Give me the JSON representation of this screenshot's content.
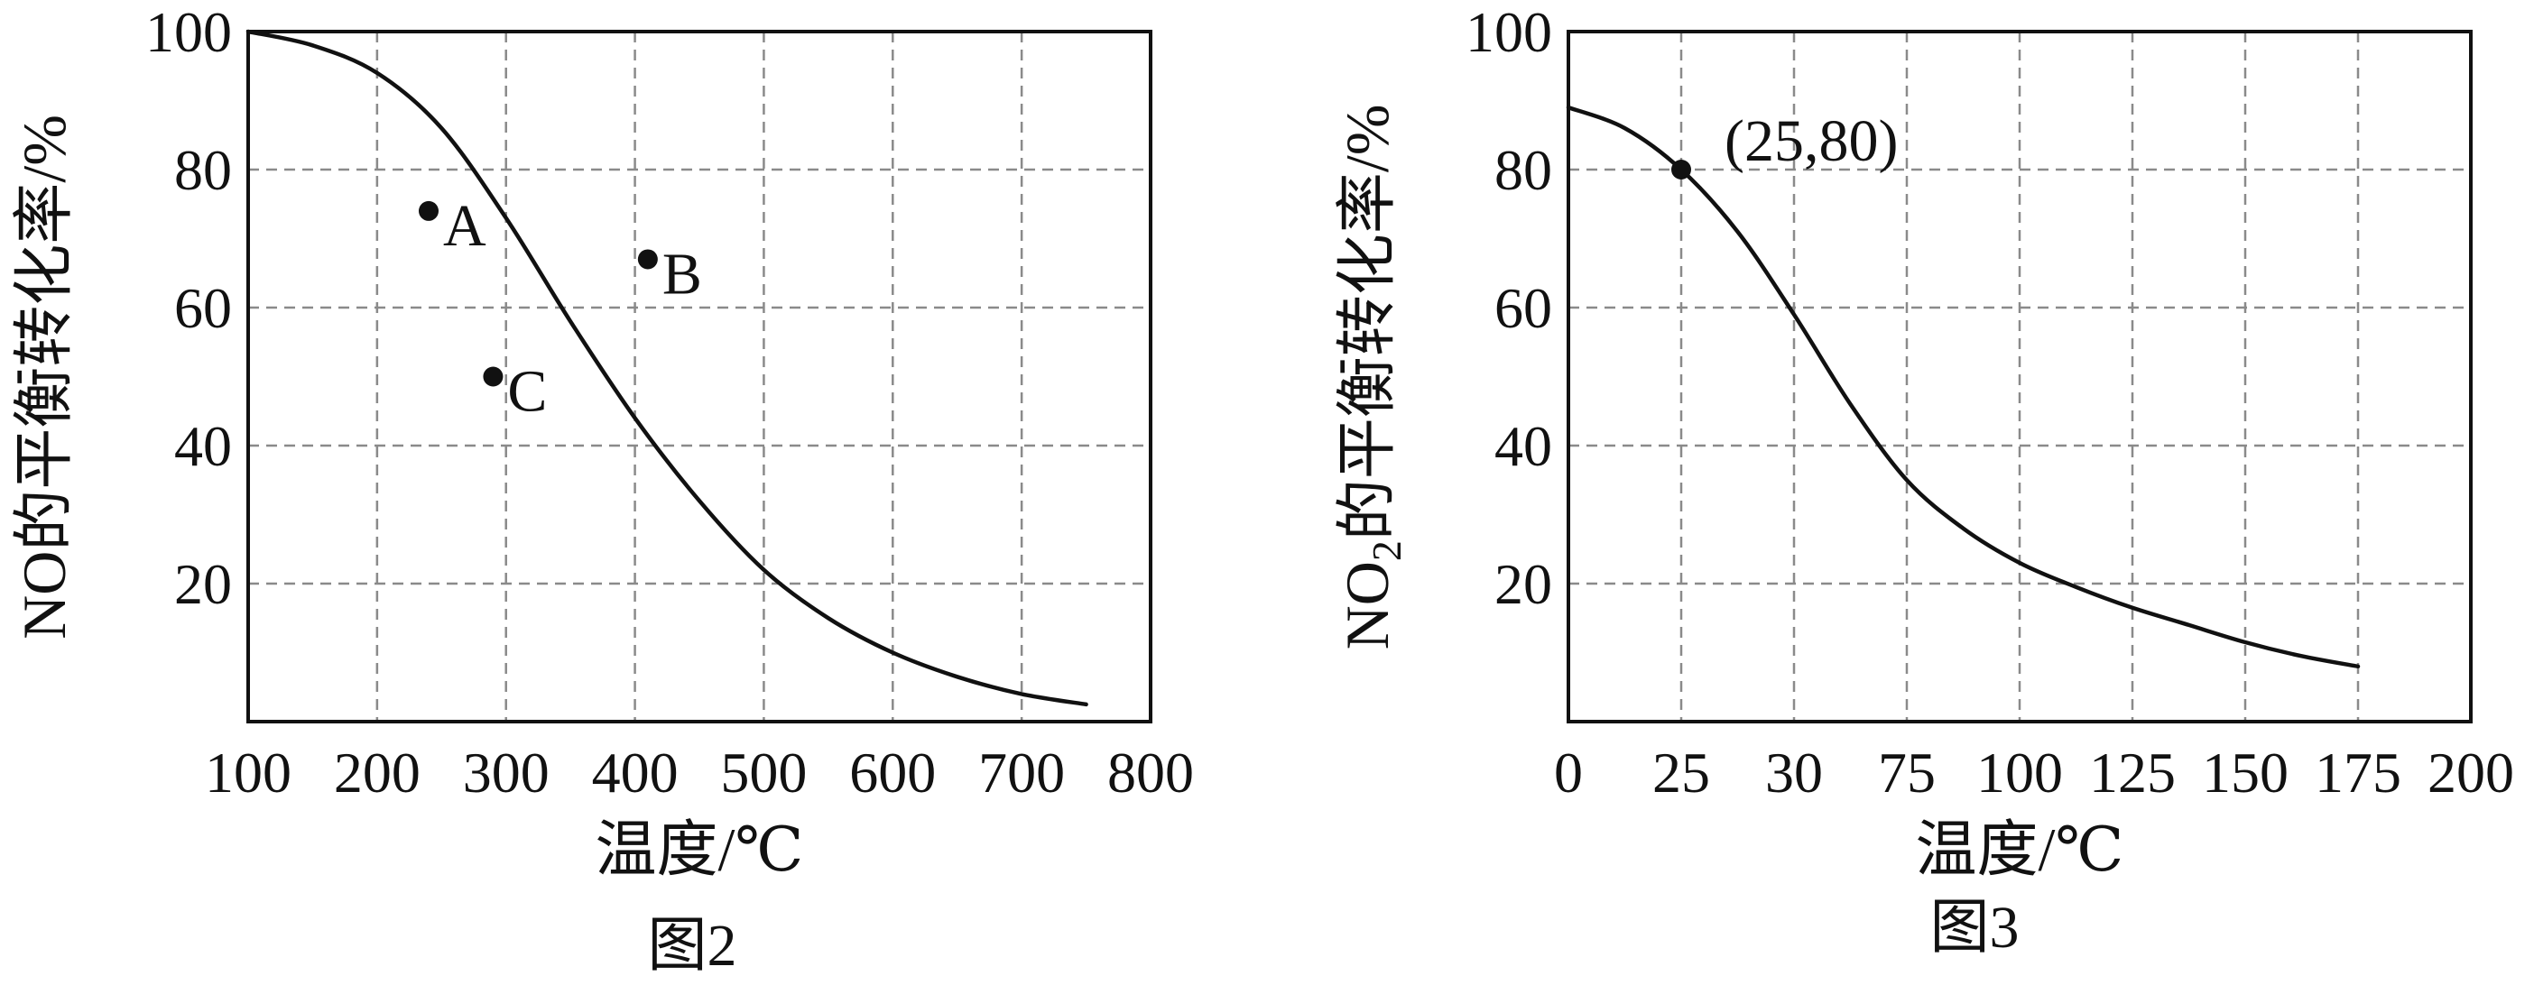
{
  "chart_data": [
    {
      "type": "line",
      "title": "",
      "caption": "图2",
      "xlabel": "温度/℃",
      "ylabel": "NO的平衡转化率/%",
      "xlim": [
        100,
        800
      ],
      "ylim": [
        0,
        100
      ],
      "x_ticks": [
        "100",
        "200",
        "300",
        "400",
        "500",
        "600",
        "700",
        "800"
      ],
      "y_ticks": [
        "20",
        "40",
        "60",
        "80",
        "100"
      ],
      "grid": true,
      "series": [
        {
          "x": [
            100,
            150,
            200,
            250,
            300,
            350,
            400,
            450,
            500,
            550,
            600,
            650,
            700,
            750
          ],
          "y": [
            100,
            98,
            94,
            86,
            73,
            58,
            44,
            32,
            22,
            15,
            10,
            6.5,
            4,
            2.5
          ]
        }
      ],
      "points": [
        {
          "label": "A",
          "x": 240,
          "y": 74
        },
        {
          "label": "B",
          "x": 410,
          "y": 67
        },
        {
          "label": "C",
          "x": 290,
          "y": 50
        }
      ]
    },
    {
      "type": "line",
      "title": "",
      "caption": "图3",
      "xlabel": "温度/℃",
      "ylabel": "NO2的平衡转化率/%",
      "ylabel_parts": [
        "NO",
        "2",
        "的平衡转化率/%"
      ],
      "x_ticks": [
        "0",
        "25",
        "30",
        "75",
        "100",
        "125",
        "150",
        "175",
        "200"
      ],
      "ylim": [
        0,
        100
      ],
      "y_ticks": [
        "20",
        "40",
        "60",
        "80",
        "100"
      ],
      "grid": true,
      "series": [
        {
          "x_tick_position": [
            0,
            0.5,
            1,
            1.5,
            2,
            2.5,
            3,
            3.5,
            4,
            4.5,
            5,
            5.5,
            6,
            6.5,
            7
          ],
          "y": [
            89,
            86,
            80,
            71,
            59,
            46,
            35,
            28,
            23,
            19.5,
            16.5,
            14,
            11.5,
            9.5,
            8
          ]
        }
      ],
      "points": [
        {
          "label": "(25,80)",
          "x": 25,
          "y": 80,
          "x_tick_position": 1
        }
      ]
    }
  ]
}
